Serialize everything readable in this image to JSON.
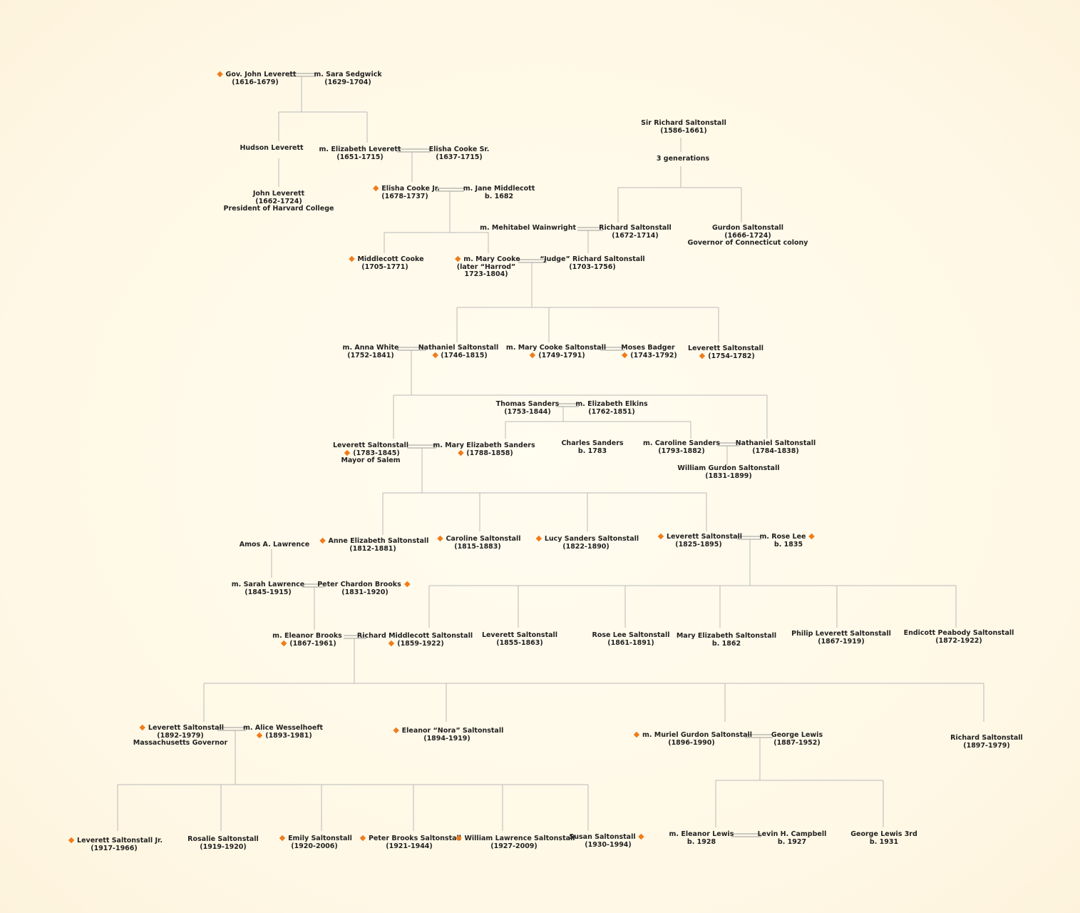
{
  "persons": [
    {
      "id": "john-leverett-gov",
      "lines": [
        "Gov. John Leverett",
        "(1616-1679)"
      ],
      "diamond": "before-name"
    },
    {
      "id": "sara-sedgwick",
      "lines": [
        "m. Sara Sedgwick",
        "(1629-1704)"
      ]
    },
    {
      "id": "hudson-leverett",
      "lines": [
        "Hudson Leverett"
      ]
    },
    {
      "id": "elizabeth-leverett",
      "lines": [
        "m. Elizabeth Leverett",
        "(1651-1715)"
      ]
    },
    {
      "id": "elisha-cooke-sr",
      "lines": [
        "Elisha Cooke Sr.",
        "(1637-1715)"
      ]
    },
    {
      "id": "john-leverett-harvard",
      "lines": [
        "John Leverett",
        "(1662-1724)",
        "President of Harvard College"
      ]
    },
    {
      "id": "elisha-cooke-jr",
      "lines": [
        "Elisha Cooke Jr.",
        "(1678-1737)"
      ],
      "diamond": "before-name"
    },
    {
      "id": "jane-middlecott",
      "lines": [
        "m.  Jane Middlecott",
        "b. 1682"
      ]
    },
    {
      "id": "sir-richard-saltonstall",
      "lines": [
        "Sir Richard Saltonstall",
        "(1586-1661)"
      ]
    },
    {
      "id": "three-generations",
      "lines": [
        "3 generations"
      ]
    },
    {
      "id": "mehitabel-wainwright",
      "lines": [
        "m. Mehitabel Wainwright"
      ]
    },
    {
      "id": "richard-saltonstall-1672",
      "lines": [
        "Richard Saltonstall",
        "(1672-1714)"
      ]
    },
    {
      "id": "gurdon-saltonstall",
      "lines": [
        "Gurdon Saltonstall",
        "(1666-1724)",
        "Governor of Connecticut colony"
      ]
    },
    {
      "id": "middlecott-cooke",
      "lines": [
        "Middlecott Cooke",
        "(1705-1771)"
      ],
      "diamond": "before-name"
    },
    {
      "id": "mary-cooke",
      "lines": [
        "m.  Mary Cooke",
        "(later “Harrod”",
        "1723-1804)"
      ],
      "diamond": "before-name"
    },
    {
      "id": "judge-richard-saltonstall",
      "lines": [
        "“Judge” Richard Saltonstall",
        "(1703-1756)"
      ]
    },
    {
      "id": "anna-white",
      "lines": [
        "m.  Anna White",
        "(1752-1841)"
      ]
    },
    {
      "id": "nathaniel-saltonstall-1746",
      "lines": [
        "Nathaniel Saltonstall",
        "(1746-1815)"
      ],
      "diamond": "before-dates"
    },
    {
      "id": "mary-cooke-saltonstall",
      "lines": [
        "m. Mary Cooke Saltonstall",
        "(1749-1791)"
      ],
      "diamond": "before-dates"
    },
    {
      "id": "moses-badger",
      "lines": [
        "Moses Badger",
        "(1743-1792)"
      ],
      "diamond": "before-dates"
    },
    {
      "id": "leverett-saltonstall-1754",
      "lines": [
        "Leverett Saltonstall",
        "(1754-1782)"
      ],
      "diamond": "before-dates"
    },
    {
      "id": "thomas-sanders",
      "lines": [
        "Thomas Sanders",
        "(1753-1844)"
      ]
    },
    {
      "id": "elizabeth-elkins",
      "lines": [
        "m. Elizabeth Elkins",
        "(1762-1851)"
      ]
    },
    {
      "id": "leverett-saltonstall-1783",
      "lines": [
        "Leverett Saltonstall",
        "(1783-1845)",
        "Mayor of Salem"
      ],
      "diamond": "before-dates"
    },
    {
      "id": "mary-elizabeth-sanders",
      "lines": [
        "m.  Mary Elizabeth Sanders",
        "(1788-1858)"
      ],
      "diamond": "before-dates"
    },
    {
      "id": "charles-sanders",
      "lines": [
        "Charles Sanders",
        "b. 1783"
      ]
    },
    {
      "id": "caroline-sanders",
      "lines": [
        "m.  Caroline Sanders",
        "(1793-1882)"
      ]
    },
    {
      "id": "nathaniel-saltonstall-1784",
      "lines": [
        "Nathaniel Saltonstall",
        "(1784-1838)"
      ]
    },
    {
      "id": "william-gurdon-saltonstall",
      "lines": [
        "William Gurdon Saltonstall",
        "(1831-1899)"
      ]
    },
    {
      "id": "anne-elizabeth-saltonstall",
      "lines": [
        "Anne Elizabeth Saltonstall",
        "(1812-1881)"
      ],
      "diamond": "before-name"
    },
    {
      "id": "caroline-saltonstall",
      "lines": [
        "Caroline Saltonstall",
        "(1815-1883)"
      ],
      "diamond": "before-name"
    },
    {
      "id": "lucy-sanders-saltonstall",
      "lines": [
        "Lucy Sanders Saltonstall",
        "(1822-1890)"
      ],
      "diamond": "before-name"
    },
    {
      "id": "leverett-saltonstall-1825",
      "lines": [
        "Leverett Saltonstall",
        "(1825-1895)"
      ],
      "diamond": "before-name"
    },
    {
      "id": "rose-lee",
      "lines": [
        "m.  Rose Lee",
        "b. 1835"
      ],
      "diamond": "after-name"
    },
    {
      "id": "amos-lawrence",
      "lines": [
        "Amos A. Lawrence"
      ]
    },
    {
      "id": "sarah-lawrence",
      "lines": [
        "m.  Sarah Lawrence",
        "(1845-1915)"
      ]
    },
    {
      "id": "peter-chardon-brooks",
      "lines": [
        "Peter Chardon Brooks",
        "(1831-1920)"
      ],
      "diamond": "after-name"
    },
    {
      "id": "eleanor-brooks",
      "lines": [
        "m.  Eleanor Brooks",
        "(1867-1961)"
      ],
      "diamond": "before-dates"
    },
    {
      "id": "richard-middlecott-saltonstall",
      "lines": [
        "Richard Middlecott Saltonstall",
        "(1859-1922)"
      ],
      "diamond": "before-dates"
    },
    {
      "id": "leverett-saltonstall-1855",
      "lines": [
        "Leverett Saltonstall",
        "(1855-1863)"
      ]
    },
    {
      "id": "rose-lee-saltonstall",
      "lines": [
        "Rose Lee Saltonstall",
        "(1861-1891)"
      ]
    },
    {
      "id": "mary-elizabeth-saltonstall",
      "lines": [
        "Mary Elizabeth Saltonstall",
        "b. 1862"
      ]
    },
    {
      "id": "philip-leverett-saltonstall",
      "lines": [
        "Philip Leverett Saltonstall",
        "(1867-1919)"
      ]
    },
    {
      "id": "endicott-peabody-saltonstall",
      "lines": [
        "Endicott Peabody Saltonstall",
        "(1872-1922)"
      ]
    },
    {
      "id": "leverett-saltonstall-1892",
      "lines": [
        "Leverett Saltonstall",
        "(1892-1979)",
        "Massachusetts Governor"
      ],
      "diamond": "before-name"
    },
    {
      "id": "alice-wesselhoeft",
      "lines": [
        "m.  Alice Wesselhoeft",
        "(1893-1981)"
      ],
      "diamond": "before-dates"
    },
    {
      "id": "eleanor-nora-saltonstall",
      "lines": [
        "Eleanor “Nora” Saltonstall",
        "(1894-1919)"
      ],
      "diamond": "before-name"
    },
    {
      "id": "muriel-gurdon-saltonstall",
      "lines": [
        "m.  Muriel Gurdon Saltonstall",
        "(1896-1990)"
      ],
      "diamond": "before-name"
    },
    {
      "id": "george-lewis",
      "lines": [
        "George Lewis",
        "(1887-1952)"
      ]
    },
    {
      "id": "richard-saltonstall-1897",
      "lines": [
        "Richard Saltonstall",
        "(1897-1979)"
      ]
    },
    {
      "id": "leverett-saltonstall-jr",
      "lines": [
        "Leverett Saltonstall Jr.",
        "(1917-1966)"
      ],
      "diamond": "before-name"
    },
    {
      "id": "rosalie-saltonstall",
      "lines": [
        "Rosalie Saltonstall",
        "(1919-1920)"
      ]
    },
    {
      "id": "emily-saltonstall",
      "lines": [
        "Emily Saltonstall",
        "(1920-2006)"
      ],
      "diamond": "before-name"
    },
    {
      "id": "peter-brooks-saltonstall",
      "lines": [
        "Peter Brooks Saltonstall",
        "(1921-1944)"
      ],
      "diamond": "before-name"
    },
    {
      "id": "william-lawrence-saltonstall",
      "lines": [
        "William Lawrence Saltonstall",
        "(1927-2009)"
      ],
      "diamond": "before-name"
    },
    {
      "id": "susan-saltonstall",
      "lines": [
        "Susan Saltonstall",
        "(1930-1994)"
      ],
      "diamond": "after-name"
    },
    {
      "id": "eleanor-lewis",
      "lines": [
        "m. Eleanor Lewis",
        "b. 1928"
      ]
    },
    {
      "id": "levin-campbell",
      "lines": [
        "Levin H. Campbell",
        "b. 1927"
      ]
    },
    {
      "id": "george-lewis-3rd",
      "lines": [
        "George Lewis 3rd",
        "b. 1931"
      ]
    }
  ],
  "colors": {
    "background": "#fff8e6",
    "line": "#b9b9b9",
    "marriage": "#9a9a9a",
    "diamond": "#f07c1a",
    "text": "#222222"
  }
}
